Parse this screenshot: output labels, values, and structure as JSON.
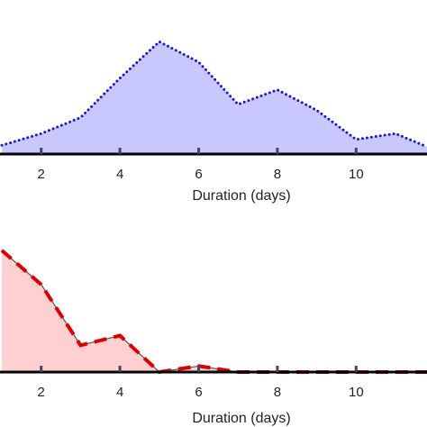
{
  "chart_data": [
    {
      "type": "area",
      "xlabel": "Duration (days)",
      "ylabel": "",
      "xlim": [
        1,
        11.8
      ],
      "ylim": [
        0,
        1
      ],
      "xticks": [
        2,
        4,
        6,
        8,
        10
      ],
      "xtick_labels": [
        "2",
        "4",
        "6",
        "8",
        "10"
      ],
      "grid": false,
      "series": [
        {
          "fill_color": "#c8c8ff",
          "line_color": "#1a1acc",
          "line_style": "dotted",
          "x": [
            1,
            2,
            3,
            4,
            5,
            6,
            7,
            8,
            9,
            10,
            11,
            11.8
          ],
          "y": [
            0.06,
            0.14,
            0.25,
            0.52,
            0.77,
            0.63,
            0.34,
            0.44,
            0.3,
            0.1,
            0.14,
            0.05
          ]
        }
      ]
    },
    {
      "type": "area",
      "xlabel": "Duration (days)",
      "ylabel": "",
      "xlim": [
        1,
        11.8
      ],
      "ylim": [
        0,
        1
      ],
      "xticks": [
        2,
        4,
        6,
        8,
        10
      ],
      "xtick_labels": [
        "2",
        "4",
        "6",
        "8",
        "10"
      ],
      "grid": false,
      "series": [
        {
          "fill_color": "#ffd0d0",
          "line_color": "#555555",
          "line_style": "solid",
          "x": [
            1,
            2,
            3,
            4,
            5,
            6,
            7,
            8,
            9,
            10,
            11,
            11.8
          ],
          "y": [
            1.0,
            0.72,
            0.22,
            0.3,
            0.0,
            0.05,
            0.0,
            0.0,
            0.0,
            0.0,
            0.0,
            0.0
          ]
        },
        {
          "fill_color": "none",
          "line_color": "#dd0000",
          "line_style": "dashed",
          "x": [
            1,
            2,
            3,
            4,
            5,
            6,
            7,
            8,
            9,
            10,
            11,
            11.8
          ],
          "y": [
            1.0,
            0.72,
            0.22,
            0.3,
            0.0,
            0.05,
            0.0,
            0.0,
            0.0,
            0.0,
            0.0,
            0.0
          ]
        }
      ]
    }
  ]
}
